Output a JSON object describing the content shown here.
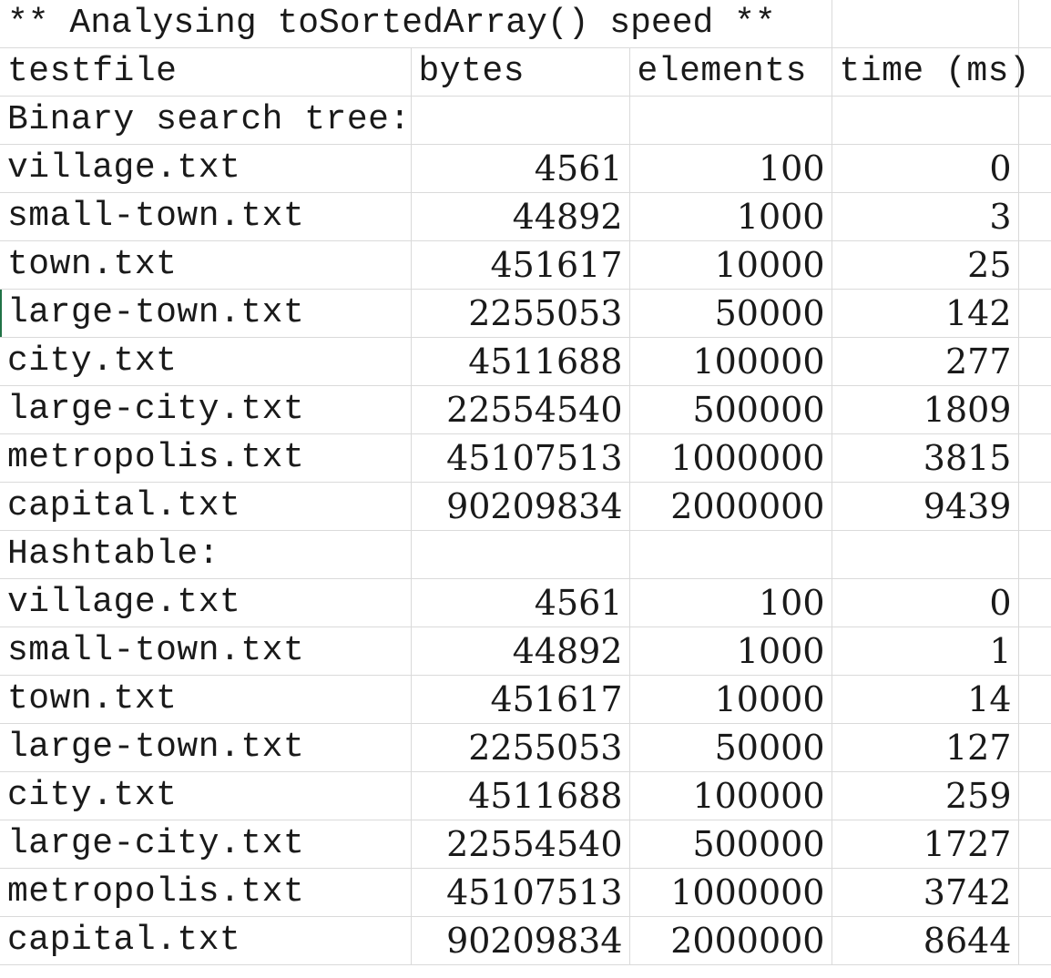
{
  "sheet": {
    "title": "** Analysing toSortedArray() speed **",
    "headers": [
      "testfile",
      "bytes",
      "elements",
      "time (ms)"
    ],
    "sections": [
      {
        "label": "Binary search tree:",
        "rows": [
          {
            "file": "village.txt",
            "bytes": "4561",
            "elements": "100",
            "time": "0"
          },
          {
            "file": "small-town.txt",
            "bytes": "44892",
            "elements": "1000",
            "time": "3"
          },
          {
            "file": "town.txt",
            "bytes": "451617",
            "elements": "10000",
            "time": "25"
          },
          {
            "file": "large-town.txt",
            "bytes": "2255053",
            "elements": "50000",
            "time": "142"
          },
          {
            "file": "city.txt",
            "bytes": "4511688",
            "elements": "100000",
            "time": "277"
          },
          {
            "file": "large-city.txt",
            "bytes": "22554540",
            "elements": "500000",
            "time": "1809"
          },
          {
            "file": "metropolis.txt",
            "bytes": "45107513",
            "elements": "1000000",
            "time": "3815"
          },
          {
            "file": "capital.txt",
            "bytes": "90209834",
            "elements": "2000000",
            "time": "9439"
          }
        ]
      },
      {
        "label": "Hashtable:",
        "rows": [
          {
            "file": "village.txt",
            "bytes": "4561",
            "elements": "100",
            "time": "0"
          },
          {
            "file": "small-town.txt",
            "bytes": "44892",
            "elements": "1000",
            "time": "1"
          },
          {
            "file": "town.txt",
            "bytes": "451617",
            "elements": "10000",
            "time": "14"
          },
          {
            "file": "large-town.txt",
            "bytes": "2255053",
            "elements": "50000",
            "time": "127"
          },
          {
            "file": "city.txt",
            "bytes": "4511688",
            "elements": "100000",
            "time": "259"
          },
          {
            "file": "large-city.txt",
            "bytes": "22554540",
            "elements": "500000",
            "time": "1727"
          },
          {
            "file": "metropolis.txt",
            "bytes": "45107513",
            "elements": "1000000",
            "time": "3742"
          },
          {
            "file": "capital.txt",
            "bytes": "90209834",
            "elements": "2000000",
            "time": "8644"
          }
        ]
      }
    ]
  },
  "colors": {
    "gridline": "#dadada",
    "text": "#1a1a1a",
    "selection": "#217346"
  }
}
